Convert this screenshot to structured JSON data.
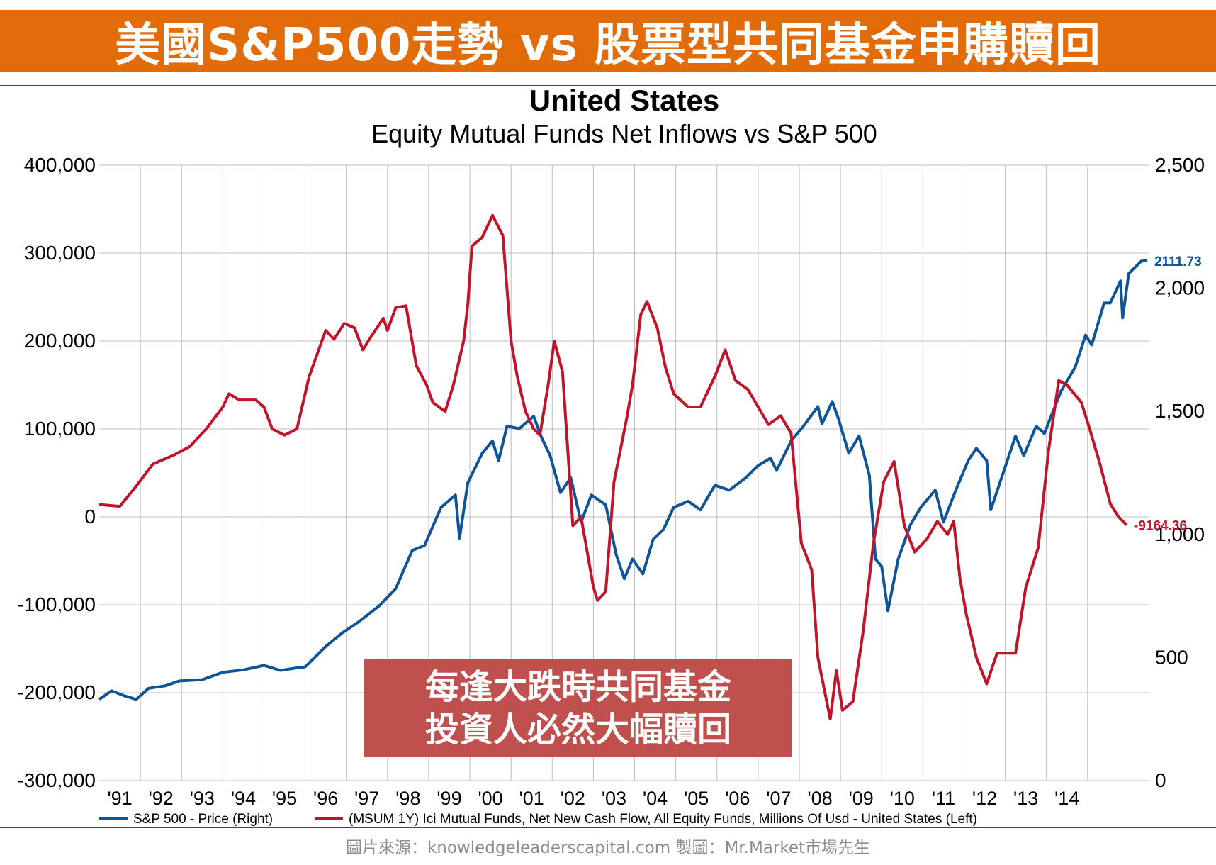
{
  "banner": {
    "title": "美國S&P500走勢 vs 股票型共同基金申購贖回"
  },
  "callout": {
    "line1": "每逢大跌時共同基金",
    "line2": "投資人必然大幅贖回"
  },
  "source": {
    "text": "圖片來源：knowledgeleaderscapital.com  製圖：Mr.Market市場先生"
  },
  "chart_data": {
    "type": "line",
    "title": "United States",
    "subtitle": "Equity Mutual Funds Net Inflows vs S&P 500",
    "x_labels": [
      "'91",
      "'92",
      "'93",
      "'94",
      "'95",
      "'96",
      "'97",
      "'98",
      "'99",
      "'00",
      "'01",
      "'02",
      "'03",
      "'04",
      "'05",
      "'06",
      "'07",
      "'08",
      "'09",
      "'10",
      "'11",
      "'12",
      "'13",
      "'14"
    ],
    "x_range": [
      1990.0,
      2015.5
    ],
    "left_axis": {
      "min": -300000,
      "max": 400000,
      "ticks": [
        "400,000",
        "300,000",
        "200,000",
        "100,000",
        "0",
        "-100,000",
        "-200,000",
        "-300,000"
      ]
    },
    "right_axis": {
      "min": 0,
      "max": 2500,
      "ticks": [
        "2,500",
        "2,000",
        "1,500",
        "1,000",
        "500",
        "0"
      ]
    },
    "grid": true,
    "legend_position": "bottom",
    "series": [
      {
        "name": "S&P 500 - Price  (Right)",
        "axis": "right",
        "color": "#0f5496",
        "last_label": "2111.73",
        "points": [
          [
            1990.0,
            330
          ],
          [
            1990.3,
            365
          ],
          [
            1990.6,
            345
          ],
          [
            1990.9,
            330
          ],
          [
            1991.2,
            375
          ],
          [
            1991.6,
            385
          ],
          [
            1991.95,
            405
          ],
          [
            1992.5,
            410
          ],
          [
            1993.0,
            440
          ],
          [
            1993.5,
            450
          ],
          [
            1994.0,
            468
          ],
          [
            1994.4,
            448
          ],
          [
            1994.8,
            458
          ],
          [
            1995.0,
            462
          ],
          [
            1995.5,
            545
          ],
          [
            1995.9,
            600
          ],
          [
            1996.3,
            645
          ],
          [
            1996.8,
            710
          ],
          [
            1997.2,
            780
          ],
          [
            1997.6,
            935
          ],
          [
            1997.9,
            955
          ],
          [
            1998.3,
            1110
          ],
          [
            1998.65,
            1160
          ],
          [
            1998.75,
            985
          ],
          [
            1998.95,
            1210
          ],
          [
            1999.3,
            1330
          ],
          [
            1999.55,
            1380
          ],
          [
            1999.7,
            1300
          ],
          [
            1999.9,
            1440
          ],
          [
            2000.2,
            1430
          ],
          [
            2000.55,
            1480
          ],
          [
            2000.75,
            1390
          ],
          [
            2000.95,
            1320
          ],
          [
            2001.2,
            1170
          ],
          [
            2001.45,
            1230
          ],
          [
            2001.7,
            1050
          ],
          [
            2001.95,
            1160
          ],
          [
            2002.3,
            1120
          ],
          [
            2002.55,
            920
          ],
          [
            2002.75,
            820
          ],
          [
            2002.95,
            900
          ],
          [
            2003.2,
            840
          ],
          [
            2003.45,
            980
          ],
          [
            2003.7,
            1020
          ],
          [
            2003.95,
            1110
          ],
          [
            2004.3,
            1135
          ],
          [
            2004.6,
            1100
          ],
          [
            2004.95,
            1200
          ],
          [
            2005.3,
            1180
          ],
          [
            2005.7,
            1230
          ],
          [
            2006.0,
            1280
          ],
          [
            2006.3,
            1310
          ],
          [
            2006.45,
            1260
          ],
          [
            2006.8,
            1380
          ],
          [
            2007.1,
            1440
          ],
          [
            2007.45,
            1520
          ],
          [
            2007.55,
            1450
          ],
          [
            2007.8,
            1540
          ],
          [
            2007.95,
            1470
          ],
          [
            2008.2,
            1330
          ],
          [
            2008.45,
            1400
          ],
          [
            2008.7,
            1240
          ],
          [
            2008.85,
            900
          ],
          [
            2009.0,
            870
          ],
          [
            2009.15,
            690
          ],
          [
            2009.4,
            900
          ],
          [
            2009.7,
            1040
          ],
          [
            2009.95,
            1110
          ],
          [
            2010.3,
            1180
          ],
          [
            2010.5,
            1050
          ],
          [
            2010.8,
            1180
          ],
          [
            2011.1,
            1300
          ],
          [
            2011.3,
            1350
          ],
          [
            2011.55,
            1300
          ],
          [
            2011.65,
            1100
          ],
          [
            2011.95,
            1250
          ],
          [
            2012.25,
            1400
          ],
          [
            2012.45,
            1320
          ],
          [
            2012.75,
            1440
          ],
          [
            2012.95,
            1410
          ],
          [
            2013.35,
            1580
          ],
          [
            2013.7,
            1680
          ],
          [
            2013.95,
            1810
          ],
          [
            2014.1,
            1770
          ],
          [
            2014.4,
            1940
          ],
          [
            2014.55,
            1940
          ],
          [
            2014.8,
            2030
          ],
          [
            2014.85,
            1880
          ],
          [
            2015.0,
            2060
          ],
          [
            2015.3,
            2110
          ],
          [
            2015.45,
            2111.73
          ]
        ]
      },
      {
        "name": "(MSUM 1Y) Ici Mutual Funds, Net New Cash Flow, All Equity Funds, Millions Of Usd - United States  (Left)",
        "axis": "left",
        "color": "#c0142a",
        "last_label": "-9164.36",
        "points": [
          [
            1990.0,
            14000
          ],
          [
            1990.5,
            12000
          ],
          [
            1990.9,
            35000
          ],
          [
            1991.3,
            60000
          ],
          [
            1991.8,
            70000
          ],
          [
            1992.2,
            80000
          ],
          [
            1992.6,
            100000
          ],
          [
            1993.0,
            125000
          ],
          [
            1993.15,
            140000
          ],
          [
            1993.4,
            133000
          ],
          [
            1993.8,
            133000
          ],
          [
            1994.0,
            125000
          ],
          [
            1994.2,
            100000
          ],
          [
            1994.5,
            93000
          ],
          [
            1994.8,
            100000
          ],
          [
            1995.1,
            160000
          ],
          [
            1995.5,
            212000
          ],
          [
            1995.7,
            202000
          ],
          [
            1995.95,
            220000
          ],
          [
            1996.2,
            215000
          ],
          [
            1996.4,
            190000
          ],
          [
            1996.6,
            205000
          ],
          [
            1996.9,
            226000
          ],
          [
            1997.0,
            212000
          ],
          [
            1997.2,
            238000
          ],
          [
            1997.45,
            240000
          ],
          [
            1997.7,
            172000
          ],
          [
            1997.95,
            150000
          ],
          [
            1998.1,
            130000
          ],
          [
            1998.4,
            120000
          ],
          [
            1998.6,
            150000
          ],
          [
            1998.85,
            200000
          ],
          [
            1998.95,
            242000
          ],
          [
            1999.05,
            308000
          ],
          [
            1999.3,
            318000
          ],
          [
            1999.55,
            343000
          ],
          [
            1999.8,
            320000
          ],
          [
            2000.0,
            200000
          ],
          [
            2000.15,
            160000
          ],
          [
            2000.35,
            120000
          ],
          [
            2000.55,
            100000
          ],
          [
            2000.7,
            93000
          ],
          [
            2000.9,
            150000
          ],
          [
            2001.05,
            200000
          ],
          [
            2001.25,
            165000
          ],
          [
            2001.5,
            -10000
          ],
          [
            2001.7,
            0
          ],
          [
            2001.85,
            -40000
          ],
          [
            2002.0,
            -80000
          ],
          [
            2002.1,
            -95000
          ],
          [
            2002.3,
            -85000
          ],
          [
            2002.5,
            40000
          ],
          [
            2002.8,
            110000
          ],
          [
            2002.95,
            150000
          ],
          [
            2003.15,
            230000
          ],
          [
            2003.3,
            245000
          ],
          [
            2003.55,
            215000
          ],
          [
            2003.75,
            170000
          ],
          [
            2003.95,
            140000
          ],
          [
            2004.3,
            125000
          ],
          [
            2004.6,
            125000
          ],
          [
            2004.95,
            160000
          ],
          [
            2005.2,
            190000
          ],
          [
            2005.45,
            155000
          ],
          [
            2005.75,
            145000
          ],
          [
            2006.0,
            125000
          ],
          [
            2006.25,
            105000
          ],
          [
            2006.55,
            115000
          ],
          [
            2006.8,
            95000
          ],
          [
            2007.05,
            -30000
          ],
          [
            2007.3,
            -60000
          ],
          [
            2007.45,
            -160000
          ],
          [
            2007.6,
            -195000
          ],
          [
            2007.75,
            -230000
          ],
          [
            2007.9,
            -175000
          ],
          [
            2008.05,
            -220000
          ],
          [
            2008.3,
            -210000
          ],
          [
            2008.55,
            -130000
          ],
          [
            2008.8,
            -30000
          ],
          [
            2009.05,
            40000
          ],
          [
            2009.3,
            63000
          ],
          [
            2009.55,
            -10000
          ],
          [
            2009.8,
            -40000
          ],
          [
            2010.1,
            -25000
          ],
          [
            2010.35,
            -5000
          ],
          [
            2010.6,
            -20000
          ],
          [
            2010.75,
            -5000
          ],
          [
            2010.9,
            -70000
          ],
          [
            2011.05,
            -110000
          ],
          [
            2011.3,
            -160000
          ],
          [
            2011.55,
            -190000
          ],
          [
            2011.8,
            -155000
          ],
          [
            2012.0,
            -155000
          ],
          [
            2012.25,
            -155000
          ],
          [
            2012.5,
            -80000
          ],
          [
            2012.8,
            -35000
          ],
          [
            2013.05,
            75000
          ],
          [
            2013.3,
            155000
          ],
          [
            2013.5,
            150000
          ],
          [
            2013.85,
            130000
          ],
          [
            2014.05,
            100000
          ],
          [
            2014.3,
            60000
          ],
          [
            2014.55,
            15000
          ],
          [
            2014.75,
            0
          ],
          [
            2014.95,
            -9164.36
          ]
        ]
      }
    ]
  }
}
